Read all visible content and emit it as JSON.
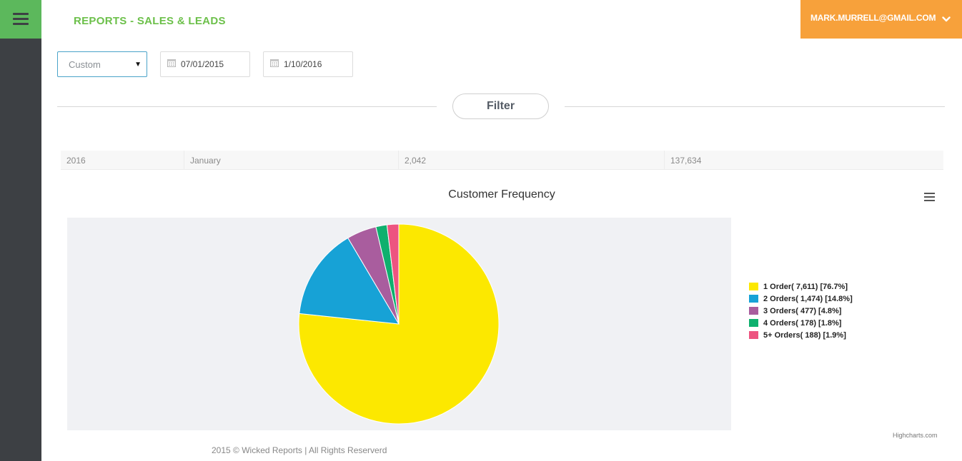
{
  "header": {
    "title": "REPORTS - SALES & LEADS",
    "user_email": "MARK.MURRELL@GMAIL.COM",
    "colors": {
      "menu_toggle": "#5cb85c",
      "user_menu": "#f7a13b",
      "title": "#6cc04a",
      "sidebar": "#3d4044"
    },
    "icons": {
      "menu": "hamburger-icon",
      "user_menu": "chevron-down-icon"
    }
  },
  "filters": {
    "range": {
      "value": "Custom",
      "icon": "caret-down-icon"
    },
    "start_date": {
      "value": "07/01/2015",
      "icon": "calendar-icon"
    },
    "end_date": {
      "value": "1/10/2016",
      "icon": "calendar-icon"
    },
    "filter_button": "Filter"
  },
  "summary": {
    "cells": [
      "2016",
      "January",
      "2,042",
      "137,634"
    ]
  },
  "chart_data": {
    "type": "pie",
    "title": "Customer Frequency",
    "categories": [
      "1 Order",
      "2 Orders",
      "3 Orders",
      "4 Orders",
      "5+ Orders"
    ],
    "values": [
      7611,
      1474,
      477,
      178,
      188
    ],
    "percentages": [
      76.7,
      14.8,
      4.8,
      1.8,
      1.9
    ],
    "legend": {
      "placement": "right",
      "labels": [
        "1 Order( 7,611) [76.7%]",
        "2 Orders( 1,474) [14.8%]",
        "3 Orders( 477) [4.8%]",
        "4 Orders( 178) [1.8%]",
        "5+ Orders( 188) [1.9%]"
      ]
    },
    "colors": [
      "#fce800",
      "#17a2d6",
      "#a95d9e",
      "#0fb06e",
      "#ed5480"
    ],
    "background": "#f0f1f4",
    "menu_icon": "hamburger-menu-icon",
    "credits": "Highcharts.com"
  },
  "footer": {
    "text": "2015 © Wicked Reports | All Rights Reserverd"
  }
}
